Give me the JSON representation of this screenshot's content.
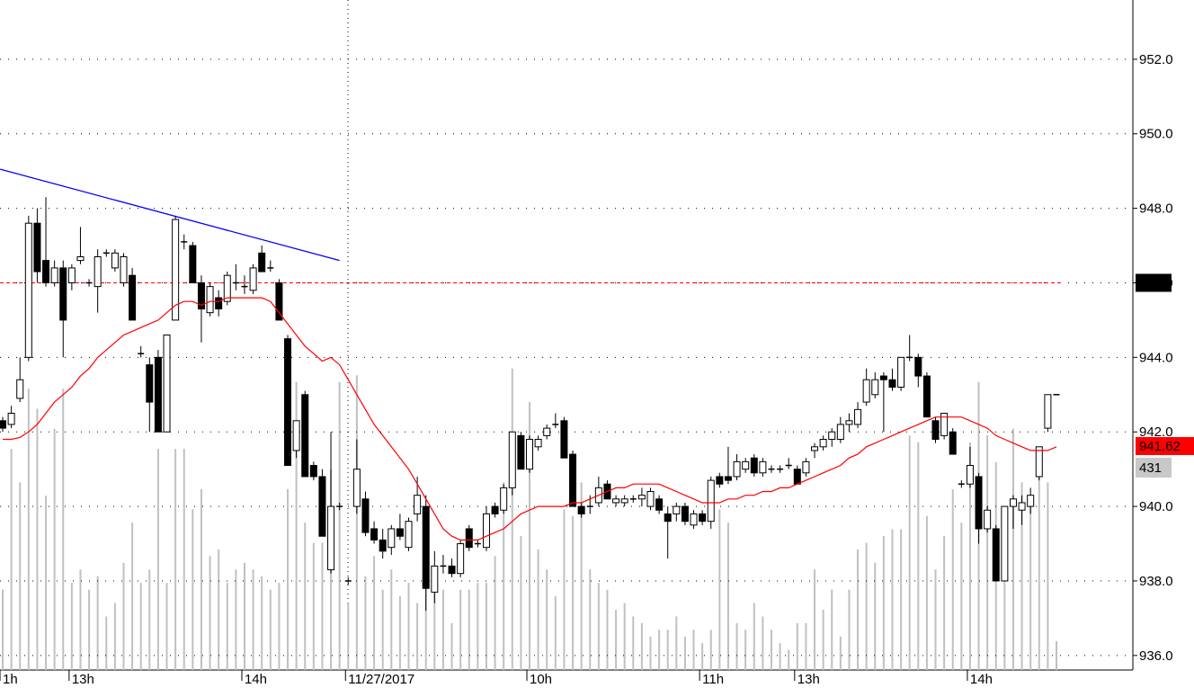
{
  "chart_data": {
    "type": "candlestick",
    "categories": [
      "1h",
      null,
      null,
      null,
      null,
      null,
      null,
      null,
      "13h",
      null,
      null,
      null,
      null,
      null,
      null,
      null,
      null,
      null,
      null,
      null,
      null,
      null,
      null,
      null,
      null,
      null,
      null,
      null,
      "14h",
      null,
      null,
      null,
      null,
      null,
      null,
      null,
      null,
      null,
      null,
      null,
      "11/27/2017",
      null,
      null,
      null,
      null,
      null,
      null,
      null,
      null,
      null,
      null,
      null,
      null,
      null,
      null,
      null,
      null,
      null,
      null,
      null,
      null,
      "10h",
      null,
      null,
      null,
      null,
      null,
      null,
      null,
      null,
      null,
      null,
      null,
      null,
      null,
      null,
      null,
      null,
      null,
      null,
      null,
      "11h",
      null,
      null,
      null,
      null,
      null,
      null,
      null,
      null,
      null,
      null,
      "13h",
      null,
      null,
      null,
      null,
      null,
      null,
      null,
      null,
      null,
      null,
      null,
      null,
      null,
      null,
      null,
      null,
      null,
      null,
      null,
      "14h",
      null,
      null,
      null,
      null,
      null,
      null,
      null,
      null,
      null,
      null
    ],
    "candles": [
      [
        942.3,
        942.4,
        942.0,
        942.1
      ],
      [
        942.2,
        942.7,
        942.1,
        942.5
      ],
      [
        942.9,
        944.0,
        942.8,
        943.4
      ],
      [
        944.0,
        947.8,
        943.9,
        947.6
      ],
      [
        947.6,
        948.0,
        946.0,
        946.3
      ],
      [
        946.6,
        948.3,
        945.9,
        946.0
      ],
      [
        946.0,
        946.6,
        945.9,
        946.4
      ],
      [
        946.4,
        946.6,
        944.0,
        945.0
      ],
      [
        946.0,
        946.5,
        945.8,
        946.4
      ],
      [
        946.6,
        947.5,
        946.5,
        946.7
      ],
      [
        946.0,
        946.1,
        945.9,
        946.0
      ],
      [
        945.9,
        946.9,
        945.2,
        946.7
      ],
      [
        946.8,
        946.9,
        946.7,
        946.8
      ],
      [
        946.4,
        946.9,
        946.3,
        946.8
      ],
      [
        946.0,
        946.8,
        945.9,
        946.7
      ],
      [
        946.2,
        946.4,
        945.0,
        945.0
      ],
      [
        944.1,
        944.3,
        944.0,
        944.1
      ],
      [
        943.8,
        944.0,
        942.0,
        942.8
      ],
      [
        944.0,
        944.2,
        942.0,
        942.0
      ],
      [
        942.0,
        944.6,
        942.0,
        944.6
      ],
      [
        945.0,
        947.8,
        945.0,
        947.7
      ],
      [
        947.1,
        947.3,
        946.9,
        947.1
      ],
      [
        947.0,
        947.1,
        946.0,
        946.0
      ],
      [
        946.0,
        946.2,
        944.4,
        945.3
      ],
      [
        945.2,
        946.0,
        945.1,
        945.9
      ],
      [
        945.6,
        945.8,
        945.1,
        945.3
      ],
      [
        945.5,
        946.3,
        945.4,
        946.2
      ],
      [
        946.0,
        946.5,
        945.8,
        946.0
      ],
      [
        945.9,
        946.2,
        945.7,
        945.9
      ],
      [
        945.8,
        946.5,
        945.7,
        946.4
      ],
      [
        946.8,
        947.0,
        946.3,
        946.3
      ],
      [
        946.4,
        946.6,
        946.3,
        946.4
      ],
      [
        946.0,
        946.1,
        945.0,
        945.0
      ],
      [
        944.5,
        944.6,
        941.1,
        941.1
      ],
      [
        941.5,
        942.3,
        941.3,
        942.3
      ],
      [
        943.0,
        943.1,
        940.8,
        940.8
      ],
      [
        941.1,
        941.2,
        940.7,
        940.8
      ],
      [
        940.8,
        941.0,
        939.2,
        939.2
      ],
      [
        938.3,
        942.0,
        938.2,
        940.0
      ],
      [
        940.0,
        940.1,
        939.9,
        940.0
      ],
      [
        938.0,
        938.1,
        937.9,
        938.0
      ],
      [
        940.0,
        941.8,
        939.8,
        941.0
      ],
      [
        940.2,
        940.4,
        939.2,
        939.3
      ],
      [
        939.4,
        939.6,
        939.0,
        939.1
      ],
      [
        939.1,
        939.4,
        938.6,
        938.8
      ],
      [
        938.9,
        939.5,
        938.7,
        939.4
      ],
      [
        939.4,
        939.8,
        939.1,
        939.2
      ],
      [
        938.9,
        939.7,
        938.8,
        939.6
      ],
      [
        939.8,
        940.8,
        939.6,
        940.3
      ],
      [
        940.0,
        940.3,
        937.2,
        937.8
      ],
      [
        937.7,
        938.8,
        937.4,
        938.4
      ],
      [
        938.4,
        938.7,
        938.2,
        938.4
      ],
      [
        938.4,
        938.6,
        938.1,
        938.2
      ],
      [
        938.2,
        939.1,
        938.1,
        939.0
      ],
      [
        939.4,
        939.5,
        938.8,
        938.9
      ],
      [
        939.0,
        939.1,
        938.9,
        939.0
      ],
      [
        938.9,
        940.0,
        938.8,
        939.8
      ],
      [
        940.0,
        940.1,
        939.7,
        939.8
      ],
      [
        939.9,
        940.6,
        939.8,
        940.5
      ],
      [
        940.5,
        942.0,
        940.3,
        942.0
      ],
      [
        941.9,
        942.0,
        941.0,
        941.0
      ],
      [
        941.0,
        941.9,
        940.9,
        941.8
      ],
      [
        941.6,
        941.9,
        941.5,
        941.8
      ],
      [
        941.9,
        942.2,
        941.8,
        942.1
      ],
      [
        942.2,
        942.5,
        942.1,
        942.2
      ],
      [
        942.3,
        942.4,
        941.3,
        941.3
      ],
      [
        941.4,
        941.5,
        940.0,
        940.0
      ],
      [
        940.0,
        940.1,
        939.7,
        939.8
      ],
      [
        940.0,
        940.3,
        939.8,
        940.0
      ],
      [
        940.1,
        940.8,
        940.0,
        940.5
      ],
      [
        940.6,
        940.7,
        940.2,
        940.2
      ],
      [
        940.1,
        940.3,
        940.0,
        940.2
      ],
      [
        940.1,
        940.3,
        940.0,
        940.2
      ],
      [
        940.2,
        940.3,
        940.1,
        940.2
      ],
      [
        940.2,
        940.5,
        940.0,
        940.3
      ],
      [
        940.0,
        940.5,
        939.9,
        940.4
      ],
      [
        940.2,
        940.3,
        939.8,
        939.9
      ],
      [
        939.8,
        940.0,
        938.6,
        939.6
      ],
      [
        939.8,
        940.1,
        939.6,
        940.0
      ],
      [
        940.0,
        940.1,
        939.5,
        939.6
      ],
      [
        939.5,
        939.9,
        939.4,
        939.8
      ],
      [
        939.8,
        939.9,
        939.5,
        939.6
      ],
      [
        939.6,
        940.8,
        939.4,
        940.7
      ],
      [
        940.8,
        940.9,
        940.5,
        940.6
      ],
      [
        940.8,
        941.6,
        940.6,
        940.7
      ],
      [
        940.8,
        941.4,
        940.7,
        941.2
      ],
      [
        941.0,
        941.3,
        940.9,
        941.2
      ],
      [
        941.3,
        941.4,
        940.8,
        940.9
      ],
      [
        940.9,
        941.3,
        940.8,
        941.2
      ],
      [
        941.0,
        941.1,
        940.9,
        941.0
      ],
      [
        941.0,
        941.1,
        940.9,
        941.0
      ],
      [
        941.1,
        941.3,
        941.0,
        941.1
      ],
      [
        941.0,
        941.1,
        940.6,
        940.6
      ],
      [
        940.9,
        941.3,
        940.8,
        941.2
      ],
      [
        941.5,
        941.7,
        941.3,
        941.6
      ],
      [
        941.6,
        941.9,
        941.5,
        941.8
      ],
      [
        941.8,
        942.1,
        941.6,
        942.0
      ],
      [
        941.8,
        942.4,
        941.7,
        942.2
      ],
      [
        942.2,
        942.5,
        942.0,
        942.3
      ],
      [
        942.2,
        942.8,
        942.1,
        942.6
      ],
      [
        942.8,
        943.7,
        942.7,
        943.4
      ],
      [
        943.0,
        943.6,
        942.9,
        943.4
      ],
      [
        943.5,
        943.6,
        942.0,
        943.4
      ],
      [
        943.4,
        943.7,
        943.1,
        943.2
      ],
      [
        943.2,
        944.0,
        943.1,
        944.0
      ],
      [
        944.0,
        944.6,
        943.9,
        944.0
      ],
      [
        944.0,
        944.1,
        943.2,
        943.5
      ],
      [
        943.5,
        943.6,
        942.4,
        942.4
      ],
      [
        942.3,
        942.4,
        941.7,
        941.8
      ],
      [
        941.9,
        942.5,
        941.8,
        942.5
      ],
      [
        942.0,
        942.1,
        941.4,
        941.4
      ],
      [
        940.6,
        940.7,
        940.5,
        940.6
      ],
      [
        940.6,
        941.6,
        940.5,
        941.1
      ],
      [
        940.8,
        940.9,
        939.0,
        939.4
      ],
      [
        939.4,
        940.0,
        939.3,
        939.9
      ],
      [
        939.4,
        939.5,
        938.0,
        938.0
      ],
      [
        938.0,
        940.0,
        938.0,
        940.0
      ],
      [
        940.0,
        940.3,
        939.4,
        940.2
      ],
      [
        939.9,
        940.3,
        939.5,
        940.1
      ],
      [
        940.0,
        940.5,
        939.8,
        940.3
      ],
      [
        940.8,
        941.6,
        940.7,
        941.6
      ],
      [
        942.1,
        943.0,
        942.0,
        943.0
      ],
      [
        943.0,
        943.0,
        943.0,
        943.0
      ]
    ],
    "volume": [
      1200,
      3300,
      2800,
      4200,
      3900,
      2600,
      3600,
      4200,
      1300,
      1500,
      1200,
      1400,
      800,
      1000,
      1600,
      2200,
      1300,
      1500,
      3300,
      1300,
      3300,
      3300,
      2400,
      2700,
      1700,
      1800,
      1300,
      1500,
      1600,
      1500,
      1400,
      1200,
      1300,
      2700,
      4300,
      2200,
      1900,
      1900,
      3000,
      4300,
      1000,
      4400,
      1400,
      1700,
      1200,
      1500,
      1100,
      1300,
      1000,
      1300,
      1500,
      1200,
      700,
      1200,
      1200,
      1300,
      1300,
      1700,
      2800,
      4500,
      2000,
      4000,
      1800,
      1500,
      1100,
      2400,
      2300,
      2800,
      1500,
      1300,
      1200,
      900,
      1000,
      800,
      700,
      500,
      600,
      600,
      800,
      500,
      600,
      400,
      600,
      2400,
      2200,
      700,
      600,
      1000,
      800,
      600,
      400,
      300,
      700,
      700,
      1500,
      900,
      1200,
      500,
      1200,
      1800,
      1900,
      1600,
      2000,
      2100,
      2100,
      3500,
      3400,
      2300,
      1500,
      2000,
      2700,
      2200,
      3400,
      4300,
      3500,
      3100,
      2200,
      3600,
      2800,
      2500,
      3200,
      2800,
      431
    ],
    "vlim": [
      0,
      10000
    ],
    "ma": {
      "color": "#ff0000",
      "values": [
        941.8,
        941.8,
        941.85,
        942.0,
        942.2,
        942.5,
        942.8,
        943.0,
        943.2,
        943.5,
        943.7,
        944.0,
        944.2,
        944.4,
        944.6,
        944.7,
        944.8,
        944.9,
        945.0,
        945.2,
        945.4,
        945.5,
        945.5,
        945.4,
        945.5,
        945.5,
        945.6,
        945.6,
        945.6,
        945.6,
        945.6,
        945.5,
        945.2,
        944.9,
        944.6,
        944.3,
        944.1,
        943.9,
        944.0,
        943.8,
        943.4,
        943.0,
        942.6,
        942.2,
        941.9,
        941.6,
        941.3,
        941.0,
        940.6,
        940.2,
        939.8,
        939.4,
        939.2,
        939.1,
        939.1,
        939.1,
        939.2,
        939.3,
        939.4,
        939.6,
        939.8,
        939.9,
        940.0,
        940.0,
        940.0,
        940.0,
        940.1,
        940.1,
        940.2,
        940.3,
        940.4,
        940.5,
        940.5,
        940.6,
        940.6,
        940.6,
        940.6,
        940.5,
        940.4,
        940.3,
        940.2,
        940.1,
        940.1,
        940.1,
        940.2,
        940.2,
        940.3,
        940.3,
        940.4,
        940.4,
        940.5,
        940.5,
        940.6,
        940.7,
        940.8,
        940.9,
        941.0,
        941.1,
        941.3,
        941.4,
        941.6,
        941.7,
        941.8,
        941.9,
        942.0,
        942.1,
        942.2,
        942.3,
        942.4,
        942.4,
        942.4,
        942.4,
        942.3,
        942.2,
        942.1,
        941.9,
        941.8,
        941.7,
        941.6,
        941.5,
        941.5,
        941.5,
        941.6
      ]
    },
    "ylim": [
      935.61,
      953.59
    ],
    "yticks": [
      {
        "value": 936,
        "label": "936.0"
      },
      {
        "value": 938,
        "label": "938.0"
      },
      {
        "value": 940,
        "label": "940.0"
      },
      {
        "value": 942,
        "label": "942.0"
      },
      {
        "value": 944,
        "label": "944.0"
      },
      {
        "value": 946,
        "label": "946.0"
      },
      {
        "value": 948,
        "label": "948.0"
      },
      {
        "value": 950,
        "label": "950.0"
      },
      {
        "value": 952,
        "label": "952.0"
      }
    ],
    "grid": true,
    "up_color": "#ffffff",
    "down_color": "#000000",
    "volume_color": "#c0c0c0",
    "trendline": {
      "color": "#0000ff",
      "start": [
        -0.3,
        949.05
      ],
      "end": [
        39,
        946.6
      ]
    },
    "reference_line": {
      "value": 946,
      "color": "#ff0000"
    },
    "last_price": {
      "value": 941.62,
      "label": "941.62",
      "color": "#ff0000"
    }
  }
}
